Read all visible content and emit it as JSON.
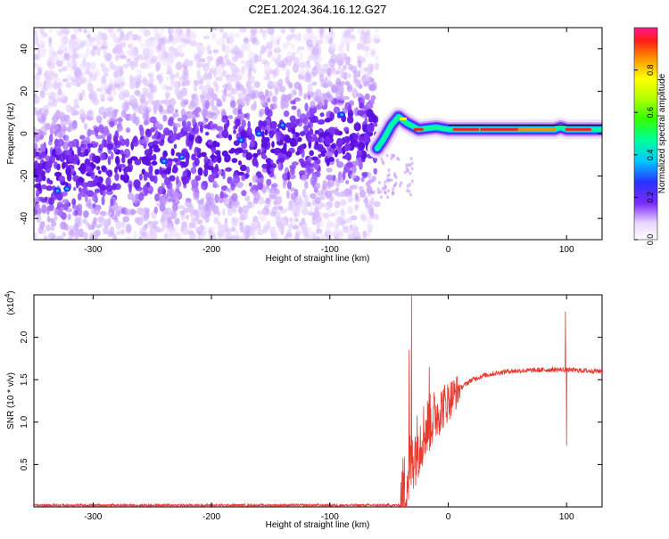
{
  "title": "C2E1.2024.364.16.12.G27",
  "chart_data": [
    {
      "type": "heatmap",
      "xlabel": "Height of straight line (km)",
      "ylabel": "Frequency (Hz)",
      "xlim": [
        -350,
        130
      ],
      "ylim": [
        -50,
        50
      ],
      "x_ticks": [
        -300,
        -200,
        -100,
        0,
        100
      ],
      "y_ticks": [
        -40,
        -20,
        0,
        20,
        40
      ],
      "colorbar": {
        "label": "Normalized spectral amplitude",
        "range": [
          0.0,
          1.0
        ],
        "ticks": [
          "0.0",
          "0.2",
          "0.4",
          "0.6",
          "0.8"
        ],
        "tick_values": [
          0.0,
          0.2,
          0.4,
          0.6,
          0.8
        ]
      },
      "features": {
        "noise_region_x": [
          -350,
          -60
        ],
        "noise_center_freq_start": -20,
        "noise_center_freq_end": 0,
        "signal_line": [
          {
            "x": -60,
            "freq": -7
          },
          {
            "x": -55,
            "freq": -3
          },
          {
            "x": -48,
            "freq": 4
          },
          {
            "x": -42,
            "freq": 8
          },
          {
            "x": -35,
            "freq": 5
          },
          {
            "x": -25,
            "freq": 2
          },
          {
            "x": -10,
            "freq": 3
          },
          {
            "x": 0,
            "freq": 2
          },
          {
            "x": 20,
            "freq": 2
          },
          {
            "x": 60,
            "freq": 2
          },
          {
            "x": 90,
            "freq": 2
          },
          {
            "x": 95,
            "freq": 3
          },
          {
            "x": 100,
            "freq": 2
          },
          {
            "x": 130,
            "freq": 2
          }
        ]
      }
    },
    {
      "type": "line",
      "xlabel": "Height of straight line (km)",
      "ylabel": "SNR (10 * v/v)",
      "y_multiplier": "(x10",
      "y_multiplier_exp": "4",
      "y_multiplier_close": ")",
      "xlim": [
        -350,
        130
      ],
      "ylim": [
        0,
        2.5
      ],
      "x_ticks": [
        -300,
        -200,
        -100,
        0,
        100
      ],
      "y_ticks": [
        0.5,
        1.0,
        1.5,
        2.0
      ],
      "y_tick_labels": [
        "0.5",
        "1.0",
        "1.5",
        "2.0"
      ],
      "series_color": "#e8392f",
      "profile": [
        {
          "x": -350,
          "y": 0.02
        },
        {
          "x": -40,
          "y": 0.02
        },
        {
          "x": -35,
          "y": 0.3
        },
        {
          "x": -30,
          "y": 0.6
        },
        {
          "x": -20,
          "y": 0.9
        },
        {
          "x": -10,
          "y": 1.1
        },
        {
          "x": 0,
          "y": 1.25
        },
        {
          "x": 10,
          "y": 1.4
        },
        {
          "x": 20,
          "y": 1.5
        },
        {
          "x": 30,
          "y": 1.55
        },
        {
          "x": 50,
          "y": 1.6
        },
        {
          "x": 90,
          "y": 1.62
        },
        {
          "x": 130,
          "y": 1.6
        }
      ],
      "spikes": [
        {
          "x": -31,
          "y": 2.55
        },
        {
          "x": -33,
          "y": 1.85
        },
        {
          "x": -16,
          "y": 1.65
        },
        {
          "x": 99,
          "y": 2.3
        },
        {
          "x": 100,
          "y": 0.72
        }
      ]
    }
  ]
}
